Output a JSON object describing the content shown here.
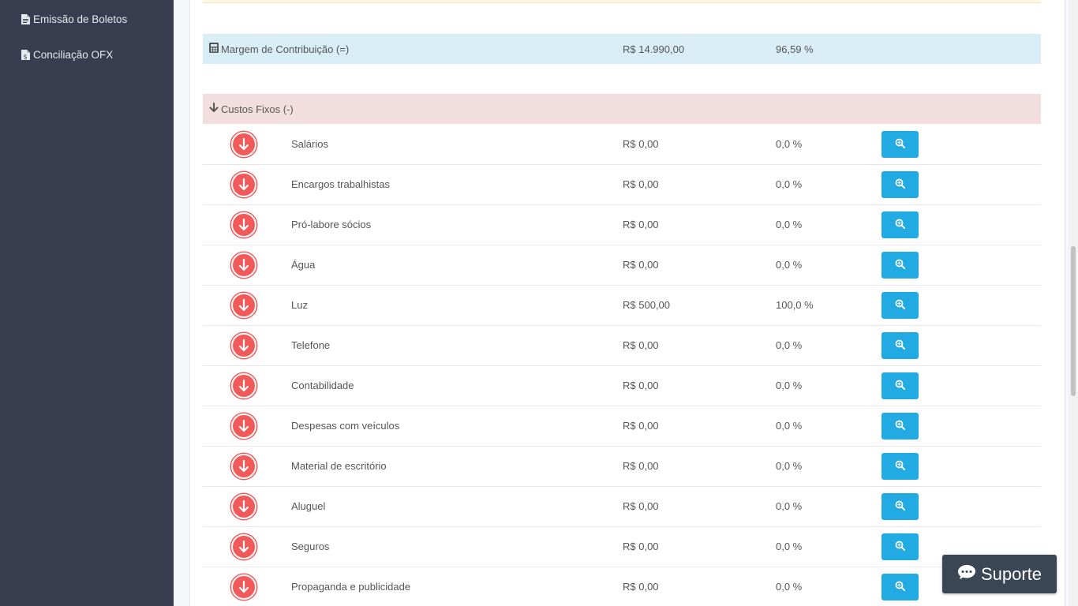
{
  "sidebar": {
    "items": [
      {
        "label": "Emissão de Boletos",
        "icon": "file-icon"
      },
      {
        "label": "Conciliação OFX",
        "icon": "file-dollar-icon"
      }
    ]
  },
  "summary": {
    "margin_label": "Margem de Contribuição (=)",
    "margin_value": "R$ 14.990,00",
    "margin_pct": "96,59 %",
    "fixed_label": "Custos Fixos (-)"
  },
  "fixed_costs": [
    {
      "name": "Salários",
      "value": "R$ 0,00",
      "pct": "0,0 %"
    },
    {
      "name": "Encargos trabalhistas",
      "value": "R$ 0,00",
      "pct": "0,0 %"
    },
    {
      "name": "Pró-labore sócios",
      "value": "R$ 0,00",
      "pct": "0,0 %"
    },
    {
      "name": "Água",
      "value": "R$ 0,00",
      "pct": "0,0 %"
    },
    {
      "name": "Luz",
      "value": "R$ 500,00",
      "pct": "100,0 %"
    },
    {
      "name": "Telefone",
      "value": "R$ 0,00",
      "pct": "0,0 %"
    },
    {
      "name": "Contabilidade",
      "value": "R$ 0,00",
      "pct": "0,0 %"
    },
    {
      "name": "Despesas com veículos",
      "value": "R$ 0,00",
      "pct": "0,0 %"
    },
    {
      "name": "Material de escritório",
      "value": "R$ 0,00",
      "pct": "0,0 %"
    },
    {
      "name": "Aluguel",
      "value": "R$ 0,00",
      "pct": "0,0 %"
    },
    {
      "name": "Seguros",
      "value": "R$ 0,00",
      "pct": "0,0 %"
    },
    {
      "name": "Propaganda e publicidade",
      "value": "R$ 0,00",
      "pct": "0,0 %"
    }
  ],
  "support_button": {
    "label": "Suporte",
    "icon": "chat-icon"
  },
  "colors": {
    "sidebar_bg": "#393d4f",
    "margin_row_bg": "#d9edf7",
    "fixed_row_bg": "#f2dede",
    "down_icon": "#f25a5a",
    "view_button": "#22abe3",
    "support_bg": "#3b4654"
  }
}
